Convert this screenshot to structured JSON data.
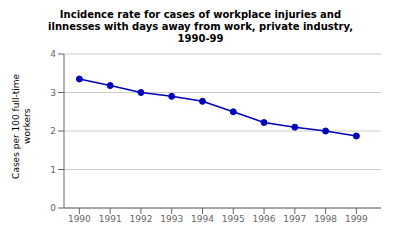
{
  "chart_data": {
    "type": "line",
    "title": "Incidence rate for cases of workplace injuries and\nilnnesses with days away from work, private industry,\n1990-99",
    "ylabel": "Cases per 100 full-time\nworkers",
    "x": [
      1990,
      1991,
      1992,
      1993,
      1994,
      1995,
      1996,
      1997,
      1998,
      1999
    ],
    "values": [
      3.35,
      3.18,
      3.0,
      2.9,
      2.77,
      2.5,
      2.22,
      2.1,
      2.0,
      1.87
    ],
    "xlim": [
      1989.5,
      1999.8
    ],
    "xticks": [
      1990,
      1991,
      1992,
      1993,
      1994,
      1995,
      1996,
      1997,
      1998,
      1999
    ],
    "ylim": [
      0,
      4
    ],
    "yticks": [
      0,
      1,
      2,
      3,
      4
    ],
    "color": "#0000BB",
    "marker": "circle",
    "grid": true
  }
}
